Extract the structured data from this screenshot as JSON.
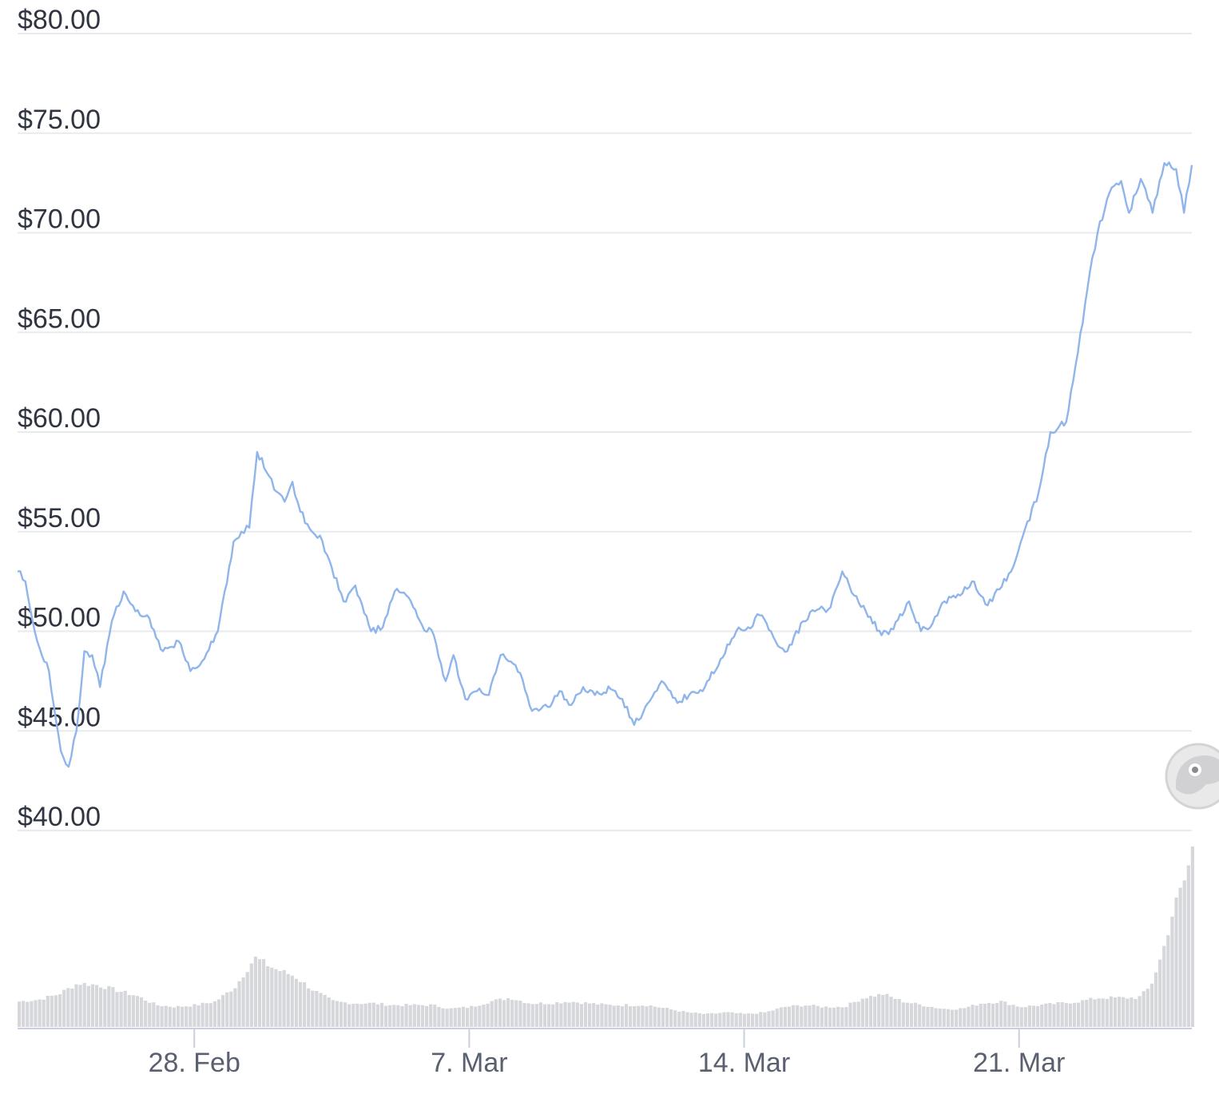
{
  "chart_data": {
    "type": "line",
    "y_axis": {
      "ticks": [
        "$40.00",
        "$45.00",
        "$50.00",
        "$55.00",
        "$60.00",
        "$65.00",
        "$70.00",
        "$75.00",
        "$80.00"
      ],
      "ylim": [
        40,
        80
      ],
      "grid": true
    },
    "x_axis": {
      "ticks": [
        {
          "label": "28. Feb",
          "day": 28.0
        },
        {
          "label": "7. Mar",
          "day": 35.0
        },
        {
          "label": "14. Mar",
          "day": 42.0
        },
        {
          "label": "21. Mar",
          "day": 49.0
        }
      ],
      "xlim": [
        23.5,
        53.4
      ]
    },
    "series": [
      {
        "color": "#8fb5ea",
        "x": [
          23.5,
          23.7,
          24.0,
          24.3,
          24.6,
          24.8,
          25.0,
          25.2,
          25.4,
          25.6,
          25.9,
          26.2,
          26.5,
          26.8,
          27.2,
          27.6,
          27.9,
          28.2,
          28.6,
          29.0,
          29.2,
          29.4,
          29.6,
          29.9,
          30.1,
          30.3,
          30.5,
          30.7,
          31.0,
          31.2,
          31.5,
          31.8,
          32.1,
          32.5,
          32.8,
          33.1,
          33.4,
          33.8,
          34.1,
          34.4,
          34.6,
          34.9,
          35.2,
          35.5,
          35.8,
          36.0,
          36.3,
          36.6,
          37.0,
          37.3,
          37.6,
          37.9,
          38.2,
          38.6,
          38.9,
          39.2,
          39.6,
          39.9,
          40.3,
          40.6,
          41.0,
          41.4,
          41.8,
          42.1,
          42.4,
          42.8,
          43.1,
          43.5,
          43.8,
          44.2,
          44.5,
          44.8,
          45.1,
          45.5,
          45.8,
          46.2,
          46.5,
          46.8,
          47.1,
          47.5,
          47.8,
          48.2,
          48.5,
          48.8,
          49.1,
          49.5,
          49.8,
          50.2,
          50.5,
          50.8,
          51.0,
          51.3,
          51.6,
          51.8,
          52.1,
          52.4,
          52.7,
          53.0,
          53.2,
          53.4
        ],
        "y": [
          53.0,
          52.5,
          49.5,
          48.0,
          44.0,
          43.2,
          45.0,
          49.0,
          48.8,
          47.2,
          50.5,
          52.0,
          51.0,
          50.8,
          49.0,
          49.5,
          48.0,
          48.5,
          50.0,
          54.5,
          55.0,
          55.2,
          59.0,
          57.8,
          57.0,
          56.5,
          57.5,
          56.0,
          55.0,
          54.8,
          53.2,
          51.5,
          52.3,
          50.0,
          50.2,
          52.0,
          51.8,
          50.3,
          49.8,
          47.5,
          48.8,
          46.6,
          47.0,
          46.8,
          48.8,
          48.5,
          47.9,
          46.0,
          46.2,
          47.0,
          46.3,
          47.2,
          46.8,
          47.1,
          46.6,
          45.3,
          46.5,
          47.5,
          46.4,
          46.8,
          47.2,
          48.6,
          50.0,
          50.2,
          50.8,
          49.5,
          49.0,
          50.5,
          51.0,
          51.2,
          53.0,
          51.8,
          51.0,
          49.8,
          50.1,
          51.5,
          50.0,
          50.4,
          51.5,
          51.8,
          52.5,
          51.3,
          52.1,
          53.0,
          54.8,
          57.0,
          60.0,
          60.5,
          64.0,
          68.0,
          70.0,
          72.0,
          72.6,
          71.0,
          72.7,
          71.0,
          73.5,
          73.2,
          71.0,
          73.4
        ]
      }
    ],
    "volume": {
      "x": [
        23.5,
        24.0,
        24.5,
        25.0,
        25.5,
        26.0,
        26.5,
        27.0,
        27.5,
        28.0,
        28.5,
        29.0,
        29.5,
        30.0,
        30.5,
        31.0,
        31.5,
        32.0,
        32.5,
        33.0,
        33.5,
        34.0,
        34.5,
        35.0,
        35.5,
        36.0,
        36.5,
        37.0,
        37.5,
        38.0,
        38.5,
        39.0,
        39.5,
        40.0,
        40.5,
        41.0,
        41.5,
        42.0,
        42.5,
        43.0,
        43.5,
        44.0,
        44.5,
        45.0,
        45.5,
        46.0,
        46.5,
        47.0,
        47.5,
        48.0,
        48.5,
        49.0,
        49.5,
        50.0,
        50.5,
        51.0,
        51.5,
        52.0,
        52.3,
        52.6,
        52.9,
        53.2,
        53.4
      ],
      "level": [
        0.14,
        0.15,
        0.18,
        0.24,
        0.23,
        0.2,
        0.17,
        0.12,
        0.11,
        0.12,
        0.14,
        0.22,
        0.38,
        0.32,
        0.28,
        0.2,
        0.14,
        0.13,
        0.13,
        0.12,
        0.12,
        0.12,
        0.1,
        0.11,
        0.14,
        0.16,
        0.13,
        0.13,
        0.14,
        0.13,
        0.12,
        0.12,
        0.12,
        0.1,
        0.08,
        0.07,
        0.08,
        0.07,
        0.08,
        0.11,
        0.12,
        0.11,
        0.11,
        0.16,
        0.18,
        0.14,
        0.12,
        0.1,
        0.1,
        0.13,
        0.14,
        0.11,
        0.12,
        0.13,
        0.14,
        0.16,
        0.16,
        0.16,
        0.22,
        0.4,
        0.65,
        0.82,
        1.0
      ]
    }
  }
}
